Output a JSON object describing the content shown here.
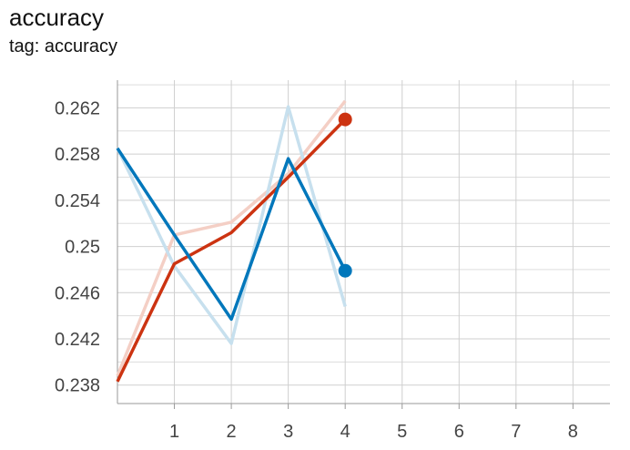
{
  "header": {
    "title": "accuracy",
    "subtitle": "tag: accuracy"
  },
  "chart_data": {
    "type": "line",
    "title": "accuracy",
    "subtitle": "tag: accuracy",
    "xlabel": "",
    "ylabel": "",
    "x_ticks": [
      1,
      2,
      3,
      4,
      5,
      6,
      7,
      8
    ],
    "y_ticks": [
      0.238,
      0.242,
      0.246,
      0.25,
      0.254,
      0.258,
      0.262
    ],
    "y_tick_labels": [
      "0.238",
      "0.242",
      "0.246",
      "0.25",
      "0.254",
      "0.258",
      "0.262"
    ],
    "xlim": [
      0,
      8.65
    ],
    "ylim": [
      0.2364,
      0.2644
    ],
    "grid": true,
    "series": [
      {
        "color": "#cc3311",
        "raw_color": "#f4cfc5",
        "x": [
          0,
          1,
          2,
          3,
          4
        ],
        "raw": [
          0.2388,
          0.251,
          0.2521,
          0.2563,
          0.2626
        ],
        "smoothed": [
          0.2383,
          0.2485,
          0.2512,
          0.256,
          0.261
        ]
      },
      {
        "color": "#0077bb",
        "raw_color": "#c7e0ee",
        "x": [
          0,
          1,
          2,
          3,
          4
        ],
        "raw": [
          0.2585,
          0.2483,
          0.2416,
          0.2621,
          0.2448
        ],
        "smoothed": [
          0.2585,
          0.251,
          0.2437,
          0.2576,
          0.2479
        ]
      }
    ]
  }
}
